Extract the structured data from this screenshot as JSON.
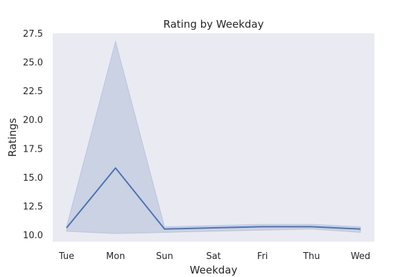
{
  "chart_data": {
    "type": "line",
    "title": "Rating by Weekday",
    "xlabel": "Weekday",
    "ylabel": "Ratings",
    "categories": [
      "Tue",
      "Mon",
      "Sun",
      "Sat",
      "Fri",
      "Thu",
      "Wed"
    ],
    "series": [
      {
        "values": [
          10.6,
          15.8,
          10.5,
          10.6,
          10.7,
          10.7,
          10.5
        ],
        "ci_upper": [
          10.7,
          26.8,
          10.7,
          10.8,
          10.9,
          10.9,
          10.7
        ],
        "ci_lower": [
          10.3,
          10.1,
          10.2,
          10.3,
          10.4,
          10.5,
          10.2
        ]
      }
    ],
    "ylim": [
      9.4,
      27.5
    ],
    "yticks": [
      "10.0",
      "12.5",
      "15.0",
      "17.5",
      "20.0",
      "22.5",
      "25.0",
      "27.5"
    ],
    "grid": false,
    "background_color": "#eaeaf2",
    "line_color": "#4c72b0"
  }
}
